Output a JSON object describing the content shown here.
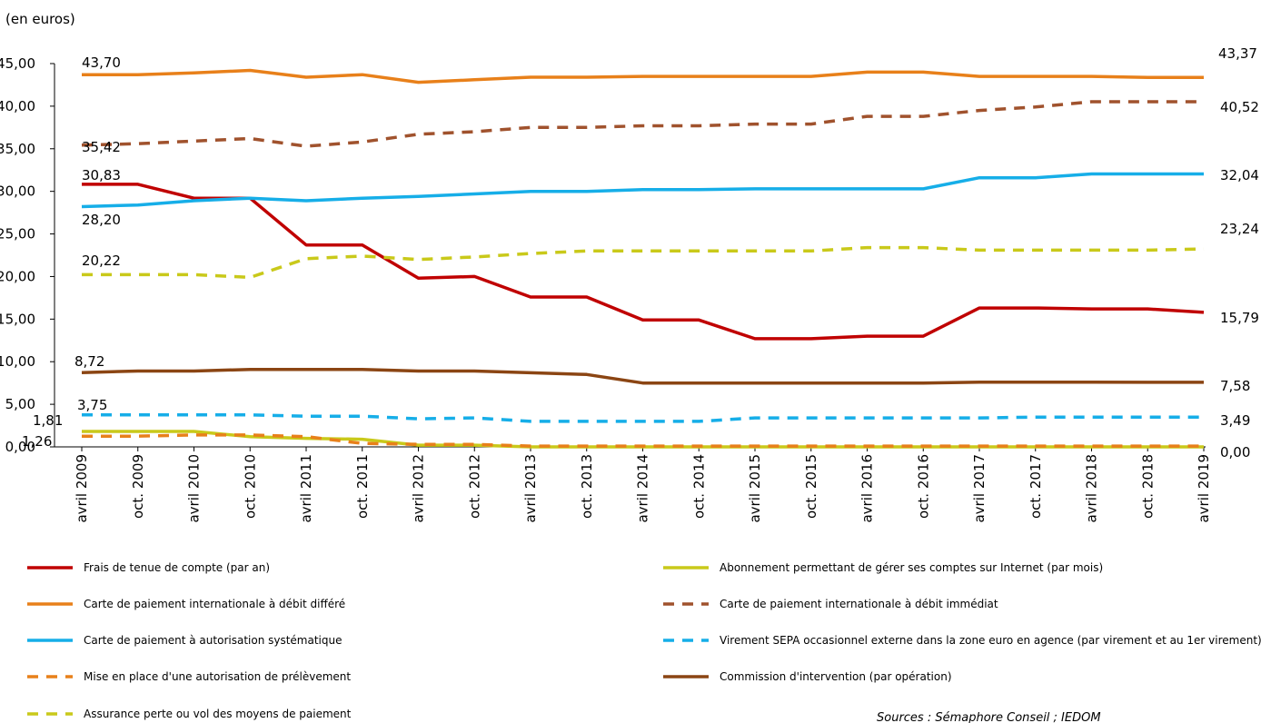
{
  "chart_data": {
    "type": "line",
    "y_unit_label": "(en euros)",
    "source_note": "Sources : Sémaphore Conseil ; IEDOM",
    "ylim": [
      0,
      45
    ],
    "y_ticks": [
      "0,00",
      "5,00",
      "10,00",
      "15,00",
      "20,00",
      "25,00",
      "30,00",
      "35,00",
      "40,00",
      "45,00"
    ],
    "y_tick_values": [
      0,
      5,
      10,
      15,
      20,
      25,
      30,
      35,
      40,
      45
    ],
    "categories": [
      "avril 2009",
      "oct. 2009",
      "avril 2010",
      "oct. 2010",
      "avril 2011",
      "oct. 2011",
      "avril 2012",
      "oct. 2012",
      "avril 2013",
      "oct. 2013",
      "avril 2014",
      "oct. 2014",
      "avril 2015",
      "oct. 2015",
      "avril 2016",
      "oct. 2016",
      "avril 2017",
      "oct. 2017",
      "avril 2018",
      "oct. 2018",
      "avril 2019"
    ],
    "series": [
      {
        "name": "Frais de tenue de compte (par an)",
        "color": "#c00000",
        "dash": false,
        "values": [
          30.83,
          30.83,
          29.2,
          29.2,
          23.7,
          23.7,
          19.8,
          20.0,
          17.6,
          17.6,
          14.9,
          14.9,
          12.7,
          12.7,
          13.0,
          13.0,
          16.3,
          16.3,
          16.2,
          16.2,
          15.79
        ],
        "start_label": "30,83",
        "end_label": "15,79"
      },
      {
        "name": "Abonnement permettant de gérer ses comptes sur Internet (par mois)",
        "color": "#c9c91a",
        "dash": false,
        "values": [
          1.81,
          1.81,
          1.81,
          1.2,
          1.0,
          0.9,
          0.2,
          0.2,
          0.0,
          0.0,
          0.0,
          0.0,
          0.0,
          0.0,
          0.0,
          0.0,
          0.0,
          0.0,
          0.0,
          0.0,
          0.0
        ],
        "start_label": "1,81",
        "end_label": "0,00"
      },
      {
        "name": "Carte de paiement internationale à débit différé",
        "color": "#e8801a",
        "dash": false,
        "values": [
          43.7,
          43.7,
          43.9,
          44.2,
          43.4,
          43.7,
          42.8,
          43.1,
          43.4,
          43.4,
          43.5,
          43.5,
          43.5,
          43.5,
          44.0,
          44.0,
          43.5,
          43.5,
          43.5,
          43.37,
          43.37
        ],
        "start_label": "43,70",
        "end_label": "43,37"
      },
      {
        "name": "Carte de paiement internationale à débit immédiat",
        "color": "#a0522d",
        "dash": true,
        "values": [
          35.42,
          35.6,
          35.9,
          36.2,
          35.3,
          35.8,
          36.7,
          37.0,
          37.5,
          37.5,
          37.7,
          37.7,
          37.9,
          37.9,
          38.8,
          38.8,
          39.5,
          39.9,
          40.52,
          40.52,
          40.52
        ],
        "start_label": "35,42",
        "end_label": "40,52"
      },
      {
        "name": "Carte de paiement à autorisation systématique",
        "color": "#16aee8",
        "dash": false,
        "values": [
          28.2,
          28.4,
          28.9,
          29.2,
          28.9,
          29.2,
          29.4,
          29.7,
          30.0,
          30.0,
          30.2,
          30.2,
          30.3,
          30.3,
          30.3,
          30.3,
          31.6,
          31.6,
          32.04,
          32.04,
          32.04
        ],
        "start_label": "28,20",
        "end_label": "32,04"
      },
      {
        "name": "Virement SEPA occasionnel externe dans la zone euro en agence (par virement et au 1er virement)",
        "color": "#16aee8",
        "dash": true,
        "values": [
          3.75,
          3.75,
          3.75,
          3.75,
          3.6,
          3.6,
          3.3,
          3.4,
          3.0,
          3.0,
          3.0,
          3.0,
          3.4,
          3.4,
          3.4,
          3.4,
          3.4,
          3.5,
          3.5,
          3.49,
          3.49
        ],
        "start_label": "3,75",
        "end_label": "3,49"
      },
      {
        "name": "Mise en place d'une autorisation de prélèvement",
        "color": "#e8801a",
        "dash": true,
        "values": [
          1.26,
          1.26,
          1.4,
          1.4,
          1.2,
          0.4,
          0.3,
          0.3,
          0.1,
          0.1,
          0.1,
          0.1,
          0.1,
          0.1,
          0.1,
          0.1,
          0.1,
          0.1,
          0.1,
          0.1,
          0.1
        ],
        "start_label": "1,26",
        "end_label": ""
      },
      {
        "name": "Commission d'intervention (par opération)",
        "color": "#8b4513",
        "dash": false,
        "values": [
          8.72,
          8.9,
          8.9,
          9.1,
          9.1,
          9.1,
          8.9,
          8.9,
          8.7,
          8.5,
          7.5,
          7.5,
          7.5,
          7.5,
          7.5,
          7.5,
          7.6,
          7.6,
          7.6,
          7.58,
          7.58
        ],
        "start_label": "8,72",
        "end_label": "7,58"
      },
      {
        "name": "Assurance perte ou vol des moyens de paiement",
        "color": "#c9c91a",
        "dash": true,
        "values": [
          20.22,
          20.22,
          20.22,
          19.9,
          22.1,
          22.4,
          22.0,
          22.3,
          22.7,
          23.0,
          23.0,
          23.0,
          23.0,
          23.0,
          23.4,
          23.4,
          23.1,
          23.1,
          23.1,
          23.1,
          23.24
        ],
        "start_label": "20,22",
        "end_label": "23,24"
      }
    ]
  }
}
